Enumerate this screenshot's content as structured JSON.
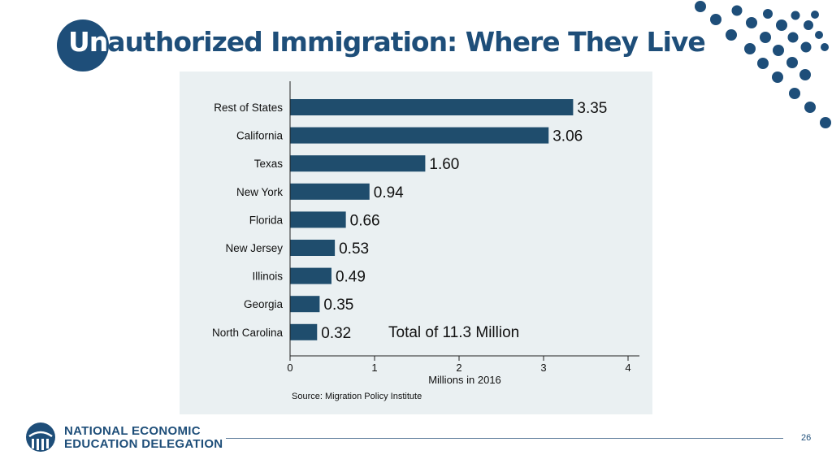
{
  "slide": {
    "title_first": "Un",
    "title_rest": "authorized Immigration: Where They Live",
    "page_number": "26"
  },
  "footer": {
    "org_line1": "NATIONAL ECONOMIC",
    "org_line2": "EDUCATION DELEGATION"
  },
  "colors": {
    "brand": "#1e4e79",
    "bar": "#1f4d6d",
    "panel": "#eaf0f2"
  },
  "chart_data": {
    "type": "bar",
    "orientation": "horizontal",
    "categories": [
      "Rest of States",
      "California",
      "Texas",
      "New York",
      "Florida",
      "New Jersey",
      "Illinois",
      "Georgia",
      "North Carolina"
    ],
    "values": [
      3.35,
      3.06,
      1.6,
      0.94,
      0.66,
      0.53,
      0.49,
      0.35,
      0.32
    ],
    "value_labels": [
      "3.35",
      "3.06",
      "1.60",
      "0.94",
      "0.66",
      "0.53",
      "0.49",
      "0.35",
      "0.32"
    ],
    "xlabel": "Millions in 2016",
    "xlim": [
      0,
      4
    ],
    "xticks": [
      "0",
      "1",
      "2",
      "3",
      "4"
    ],
    "annotation": "Total of 11.3 Million",
    "source": "Source: Migration Policy Institute"
  }
}
